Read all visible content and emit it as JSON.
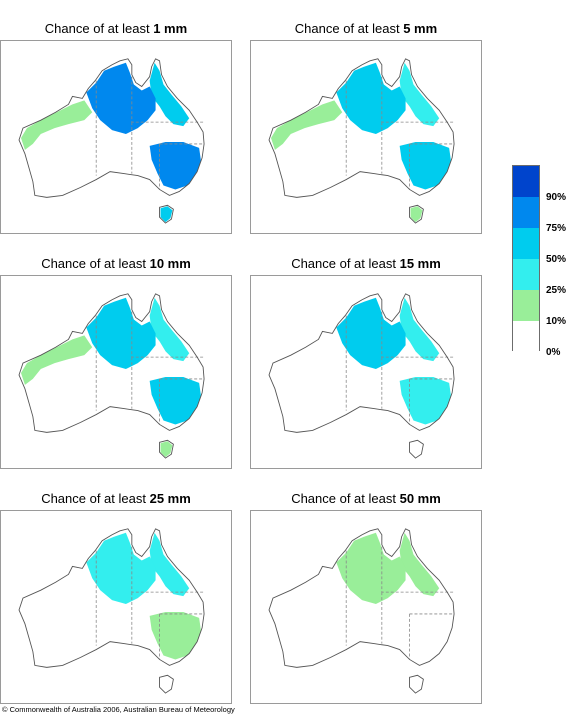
{
  "maps": [
    {
      "title_prefix": "Chance of at least",
      "threshold": "1 mm",
      "levels": {
        "north": 4,
        "east": 3,
        "west": 1,
        "se": 4,
        "tas": 3
      }
    },
    {
      "title_prefix": "Chance of at least",
      "threshold": "5 mm",
      "levels": {
        "north": 3,
        "east": 2,
        "west": 1,
        "se": 3,
        "tas": 1
      }
    },
    {
      "title_prefix": "Chance of at least",
      "threshold": "10 mm",
      "levels": {
        "north": 3,
        "east": 2,
        "west": 1,
        "se": 3,
        "tas": 1
      }
    },
    {
      "title_prefix": "Chance of at least",
      "threshold": "15 mm",
      "levels": {
        "north": 3,
        "east": 2,
        "west": 0,
        "se": 2,
        "tas": 0
      }
    },
    {
      "title_prefix": "Chance of at least",
      "threshold": "25 mm",
      "levels": {
        "north": 2,
        "east": 2,
        "west": 0,
        "se": 1,
        "tas": 0
      }
    },
    {
      "title_prefix": "Chance of at least",
      "threshold": "50 mm",
      "levels": {
        "north": 1,
        "east": 1,
        "west": 0,
        "se": 0,
        "tas": 0
      }
    }
  ],
  "legend": {
    "labels": [
      "90%",
      "75%",
      "50%",
      "25%",
      "10%",
      "0%"
    ],
    "colors": [
      "#ffffff",
      "#99ee99",
      "#33eeee",
      "#00ccee",
      "#0088ee",
      "#0044cc"
    ]
  },
  "copyright": "© Commonwealth of Australia 2006, Australian Bureau of Meteorology"
}
